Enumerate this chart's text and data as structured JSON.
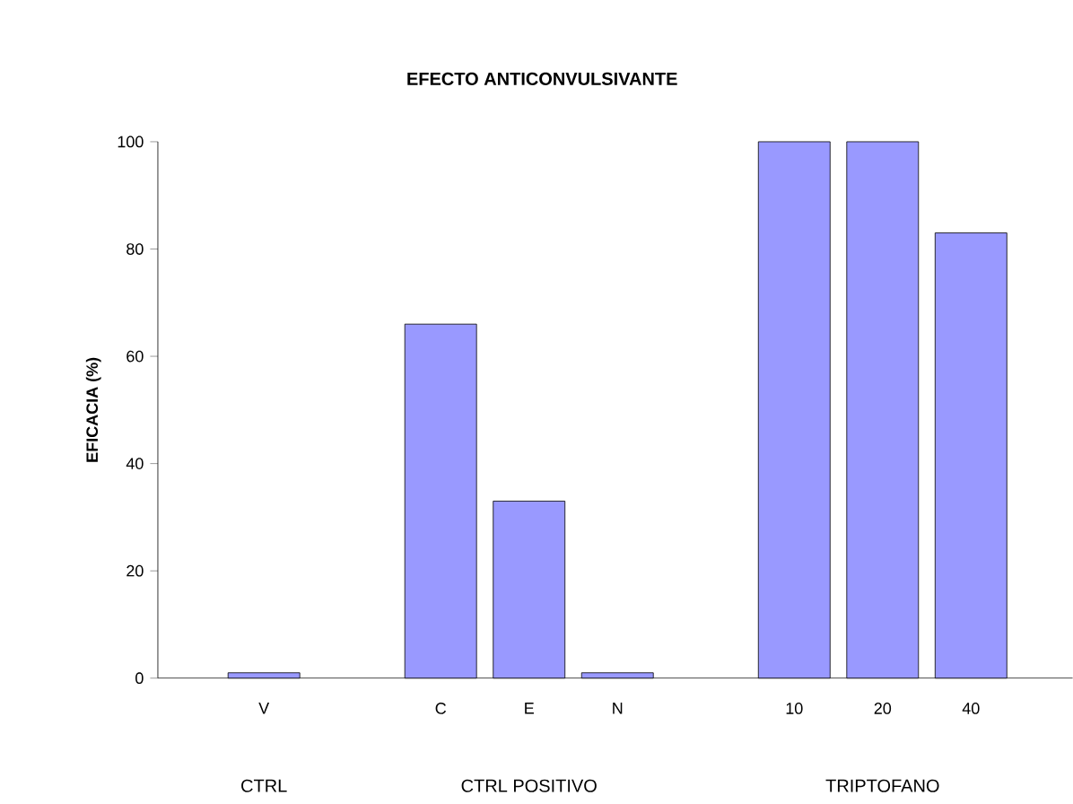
{
  "chart_data": {
    "type": "bar",
    "title": "EFECTO ANTICONVULSIVANTE",
    "ylabel": "EFICACIA (%)",
    "categories": [
      "V",
      null,
      "C",
      "E",
      "N",
      null,
      "10",
      "20",
      "40"
    ],
    "values": [
      1,
      null,
      66,
      33,
      1,
      null,
      100,
      100,
      83
    ],
    "color": "#9999ff",
    "ylim": [
      0,
      100
    ],
    "yticks": [
      0,
      20,
      40,
      60,
      80,
      100
    ],
    "annotations": [
      "CTRL",
      "CTRL POSITIVO",
      "TRIPTOFANO"
    ]
  }
}
